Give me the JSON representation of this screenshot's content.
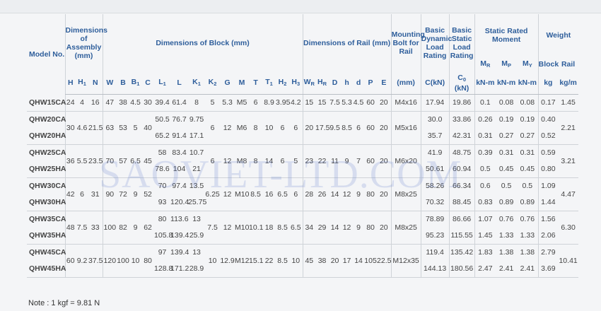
{
  "header": {
    "model": "Model No.",
    "assembly": "Dimensions of Assembly (mm)",
    "block": "Dimensions of Block (mm)",
    "rail": "Dimensions of Rail (mm)",
    "bolt": "Mounting Bolt for Rail",
    "dynamic": "Basic Dynamic Load Rating",
    "static": "Basic Static Load Rating",
    "moment": "Static Rated Moment",
    "weight": "Weight",
    "row2": [
      {
        "text": "M",
        "sub": "R"
      },
      {
        "text": "M",
        "sub": "P"
      },
      {
        "text": "M",
        "sub": "Y"
      },
      "Block",
      "Rail"
    ],
    "row3": [
      "H",
      {
        "text": "H",
        "sub": "1"
      },
      "N",
      "W",
      "B",
      {
        "text": "B",
        "sub": "1"
      },
      "C",
      {
        "text": "L",
        "sub": "1"
      },
      "L",
      {
        "text": "K",
        "sub": "1"
      },
      {
        "text": "K",
        "sub": "2"
      },
      "G",
      "M",
      "T",
      {
        "text": "T",
        "sub": "1"
      },
      {
        "text": "H",
        "sub": "2"
      },
      {
        "text": "H",
        "sub": "3"
      },
      {
        "text": "W",
        "sub": "R"
      },
      {
        "text": "H",
        "sub": "R"
      },
      "D",
      "h",
      "d",
      "P",
      "E",
      "(mm)",
      "C(kN)",
      {
        "text": "C",
        "sub": "0",
        "after": " (kN)"
      },
      "kN-m",
      "kN-m",
      "kN-m",
      "kg",
      "kg/m"
    ]
  },
  "groups": [
    {
      "models": [
        "QHW15CA"
      ],
      "cells": [
        "24",
        "4",
        "16",
        "47",
        "38",
        "4.5",
        "30",
        "39.4",
        "61.4",
        "8",
        "5",
        "5.3",
        "M5",
        "6",
        "8.9",
        "3.95",
        "4.2",
        "15",
        "15",
        "7.5",
        "5.3",
        "4.5",
        "60",
        "20",
        "M4x16",
        "17.94",
        "19.86",
        "0.1",
        "0.08",
        "0.08",
        "0.17",
        "1.45"
      ]
    },
    {
      "models": [
        "QHW20CA",
        "QHW20HA"
      ],
      "cells": [
        "30",
        "4.6",
        "21.5",
        "63",
        "53",
        "5",
        "40",
        [
          "50.5",
          "65.2"
        ],
        [
          "76.7",
          "91.4"
        ],
        [
          "9.75",
          "17.1"
        ],
        "6",
        "12",
        "M6",
        "8",
        "10",
        "6",
        "6",
        "20",
        "17.5",
        "9.5",
        "8.5",
        "6",
        "60",
        "20",
        "M5x16",
        [
          "30.0",
          "35.7"
        ],
        [
          "33.86",
          "42.31"
        ],
        [
          "0.26",
          "0.31"
        ],
        [
          "0.19",
          "0.27"
        ],
        [
          "0.19",
          "0.27"
        ],
        [
          "0.40",
          "0.52"
        ],
        "2.21"
      ]
    },
    {
      "models": [
        "QHW25CA",
        "QHW25HA"
      ],
      "cells": [
        "36",
        "5.5",
        "23.5",
        "70",
        "57",
        "6.5",
        "45",
        [
          "58",
          "78.6"
        ],
        [
          "83.4",
          "104"
        ],
        [
          "10.7",
          "21"
        ],
        "6",
        "12",
        "M8",
        "8",
        "14",
        "6",
        "5",
        "23",
        "22",
        "11",
        "9",
        "7",
        "60",
        "20",
        "M6x20",
        [
          "41.9",
          "50.61"
        ],
        [
          "48.75",
          "60.94"
        ],
        [
          "0.39",
          "0.5"
        ],
        [
          "0.31",
          "0.45"
        ],
        [
          "0.31",
          "0.45"
        ],
        [
          "0.59",
          "0.80"
        ],
        "3.21"
      ]
    },
    {
      "models": [
        "QHW30CA",
        "QHW30HA"
      ],
      "cells": [
        "42",
        "6",
        "31",
        "90",
        "72",
        "9",
        "52",
        [
          "70",
          "93"
        ],
        [
          "97.4",
          "120.4"
        ],
        [
          "13.5",
          "25.75"
        ],
        "6.25",
        "12",
        "M10",
        "8.5",
        "16",
        "6.5",
        "6",
        "28",
        "26",
        "14",
        "12",
        "9",
        "80",
        "20",
        "M8x25",
        [
          "58.26",
          "70.32"
        ],
        [
          "66.34",
          "88.45"
        ],
        [
          "0.6",
          "0.83"
        ],
        [
          "0.5",
          "0.89"
        ],
        [
          "0.5",
          "0.89"
        ],
        [
          "1.09",
          "1.44"
        ],
        "4.47"
      ]
    },
    {
      "models": [
        "QHW35CA",
        "QHW35HA"
      ],
      "cells": [
        "48",
        "7.5",
        "33",
        "100",
        "82",
        "9",
        "62",
        [
          "80",
          "105.8"
        ],
        [
          "113.6",
          "139.4"
        ],
        [
          "13",
          "25.9"
        ],
        "7.5",
        "12",
        "M10",
        "10.1",
        "18",
        "8.5",
        "6.5",
        "34",
        "29",
        "14",
        "12",
        "9",
        "80",
        "20",
        "M8x25",
        [
          "78.89",
          "95.23"
        ],
        [
          "86.66",
          "115.55"
        ],
        [
          "1.07",
          "1.45"
        ],
        [
          "0.76",
          "1.33"
        ],
        [
          "0.76",
          "1.33"
        ],
        [
          "1.56",
          "2.06"
        ],
        "6.30"
      ]
    },
    {
      "models": [
        "QHW45CA",
        "QHW45HA"
      ],
      "cells": [
        "60",
        "9.2",
        "37.5",
        "120",
        "100",
        "10",
        "80",
        [
          "97",
          "128.8"
        ],
        [
          "139.4",
          "171.2"
        ],
        [
          "13",
          "28.9"
        ],
        "10",
        "12.9",
        "M12",
        "15.1",
        "22",
        "8.5",
        "10",
        "45",
        "38",
        "20",
        "17",
        "14",
        "105",
        "22.5",
        "M12x35",
        [
          "119.4",
          "144.13"
        ],
        [
          "135.42",
          "180.56"
        ],
        [
          "1.83",
          "2.47"
        ],
        [
          "1.38",
          "2.41"
        ],
        [
          "1.38",
          "2.41"
        ],
        [
          "2.79",
          "3.69"
        ],
        "10.41"
      ]
    }
  ],
  "note": "Note : 1 kgf = 9.81 N",
  "watermark": "SAOVIET-LTD.COM"
}
